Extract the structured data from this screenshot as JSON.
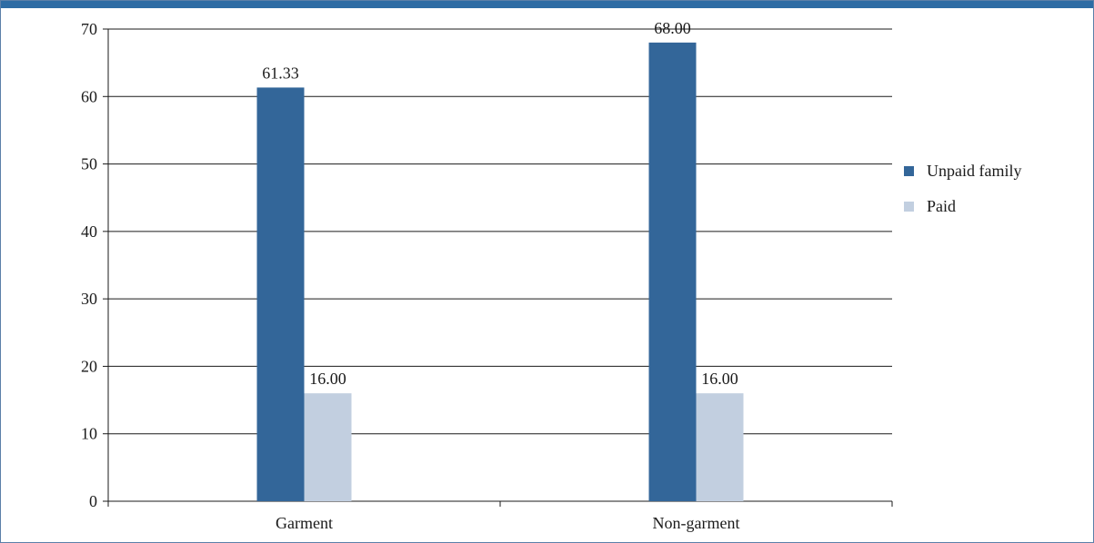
{
  "chart_data": {
    "type": "bar",
    "categories": [
      "Garment",
      "Non-garment"
    ],
    "series": [
      {
        "name": "Unpaid family",
        "values": [
          61.33,
          68.0
        ],
        "color": "#336699"
      },
      {
        "name": "Paid",
        "values": [
          16.0,
          16.0
        ],
        "color": "#c2cfe0"
      }
    ],
    "data_labels": [
      [
        "61.33",
        "68.00"
      ],
      [
        "16.00",
        "16.00"
      ]
    ],
    "title": "",
    "xlabel": "",
    "ylabel": "",
    "ylim": [
      0,
      70
    ],
    "yticks": [
      0,
      10,
      20,
      30,
      40,
      50,
      60,
      70
    ],
    "grid": true,
    "legend_position": "right"
  },
  "colors": {
    "header_band": "#2e6ca4",
    "frame_border": "#5b7fa8",
    "gridline": "#1a1a1a",
    "text": "#1a1a1a"
  }
}
